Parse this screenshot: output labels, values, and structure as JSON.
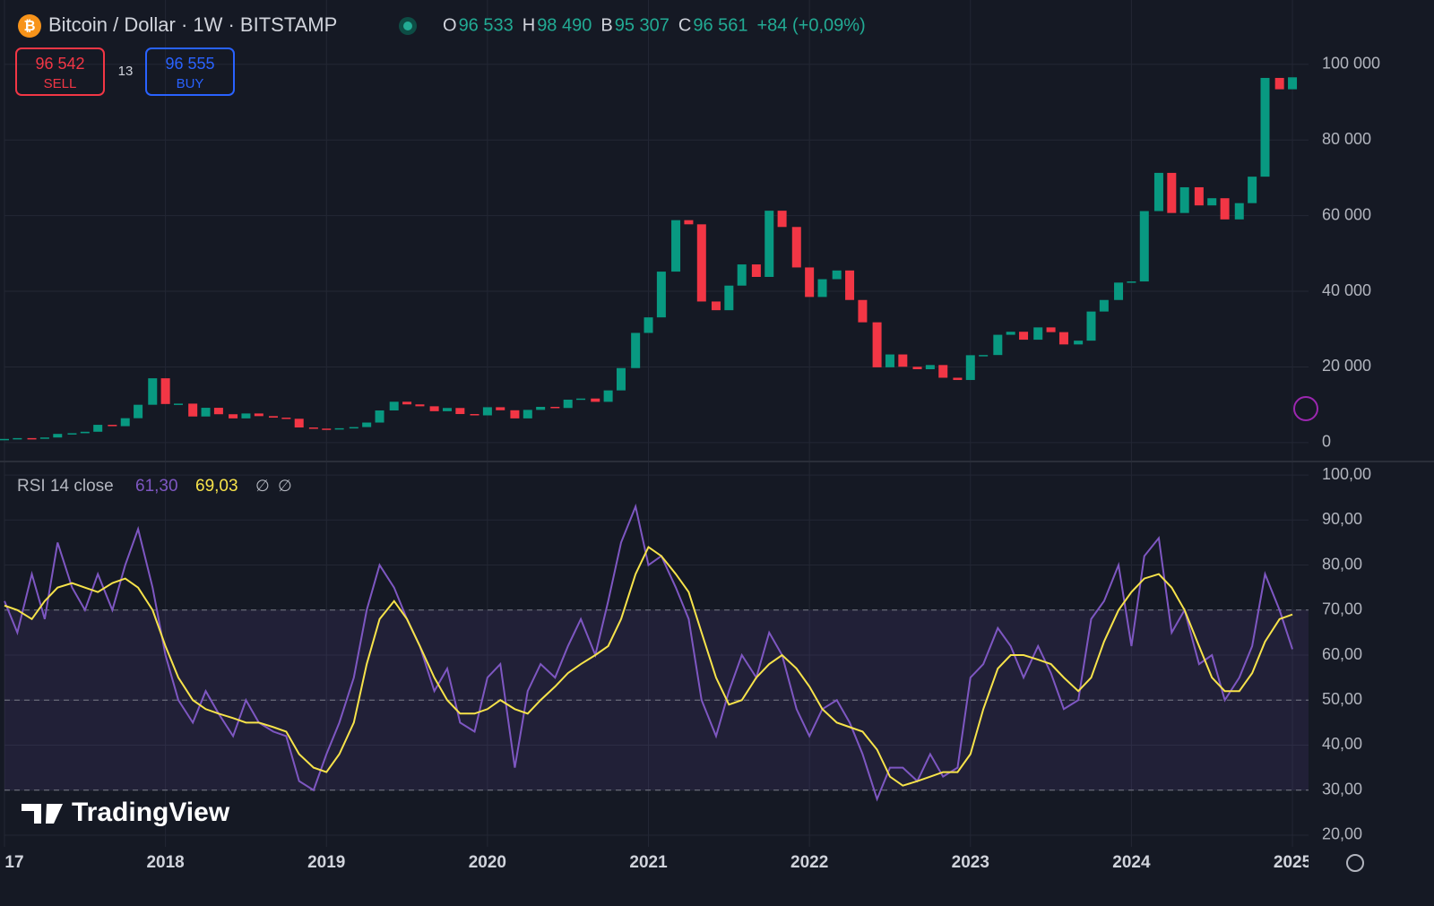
{
  "header": {
    "title": "Bitcoin / Dollar · 1W · BITSTAMP",
    "ohlc": [
      {
        "label": "O",
        "value": "96 533"
      },
      {
        "label": "H",
        "value": "98 490"
      },
      {
        "label": "B",
        "value": "95 307"
      },
      {
        "label": "C",
        "value": "96 561"
      }
    ],
    "change": "+84 (+0,09%)"
  },
  "trade": {
    "sell": "96 542",
    "sell_label": "SELL",
    "spread": "13",
    "buy": "96 555",
    "buy_label": "BUY"
  },
  "rsi_legend": {
    "title": "RSI 14 close",
    "rsi": "61,30",
    "ma": "69,03",
    "extra": [
      "∅",
      "∅"
    ]
  },
  "watermark": "TradingView",
  "chart_data": [
    {
      "type": "candlestick",
      "xlim": [
        2017,
        2025.1
      ],
      "ylim": [
        -5000,
        117000
      ],
      "yticks": [
        0,
        {
          "value": 20000,
          "label": "20 000"
        },
        {
          "value": 40000,
          "label": "40 000"
        },
        {
          "value": 60000,
          "label": "60 000"
        },
        {
          "value": 80000,
          "label": "80 000"
        },
        {
          "value": 100000,
          "label": "100 000"
        }
      ],
      "xticks": [
        {
          "value": 2017,
          "label": "17"
        },
        2018,
        2019,
        2020,
        2021,
        2022,
        2023,
        2024,
        2025
      ],
      "grid": true,
      "up_color": "#089981",
      "down_color": "#f23645",
      "x": [
        2017.0,
        2017.08,
        2017.17,
        2017.25,
        2017.33,
        2017.42,
        2017.5,
        2017.58,
        2017.67,
        2017.75,
        2017.83,
        2017.92,
        2018.0,
        2018.08,
        2018.17,
        2018.25,
        2018.33,
        2018.42,
        2018.5,
        2018.58,
        2018.67,
        2018.75,
        2018.83,
        2018.92,
        2019.0,
        2019.08,
        2019.17,
        2019.25,
        2019.33,
        2019.42,
        2019.5,
        2019.58,
        2019.67,
        2019.75,
        2019.83,
        2019.92,
        2020.0,
        2020.08,
        2020.17,
        2020.25,
        2020.33,
        2020.42,
        2020.5,
        2020.58,
        2020.67,
        2020.75,
        2020.83,
        2020.92,
        2021.0,
        2021.08,
        2021.17,
        2021.25,
        2021.33,
        2021.42,
        2021.5,
        2021.58,
        2021.67,
        2021.75,
        2021.83,
        2021.92,
        2022.0,
        2022.08,
        2022.17,
        2022.25,
        2022.33,
        2022.42,
        2022.5,
        2022.58,
        2022.67,
        2022.75,
        2022.83,
        2022.92,
        2023.0,
        2023.08,
        2023.17,
        2023.25,
        2023.33,
        2023.42,
        2023.5,
        2023.58,
        2023.67,
        2023.75,
        2023.83,
        2023.92,
        2024.0,
        2024.08,
        2024.17,
        2024.25,
        2024.33,
        2024.42,
        2024.5,
        2024.58,
        2024.67,
        2024.75,
        2024.83,
        2024.92,
        2025.0
      ],
      "series": [
        {
          "name": "close",
          "values": [
            970,
            1190,
            1080,
            1350,
            2300,
            2480,
            2870,
            4700,
            4340,
            6450,
            10000,
            17000,
            10200,
            10300,
            6900,
            9200,
            7500,
            6400,
            7700,
            7000,
            6600,
            6300,
            4000,
            3700,
            3450,
            3800,
            4100,
            5300,
            8500,
            10800,
            10100,
            9600,
            8300,
            9150,
            7550,
            7200,
            9350,
            8550,
            6400,
            8650,
            9450,
            9150,
            11350,
            11650,
            10780,
            13800,
            19700,
            29000,
            33100,
            45200,
            58800,
            57700,
            37300,
            35000,
            41500,
            47100,
            43800,
            61300,
            57000,
            46300,
            38500,
            43200,
            45500,
            37700,
            31800,
            19900,
            23300,
            20050,
            19400,
            20500,
            17150,
            16550,
            23100,
            23150,
            28500,
            29300,
            27200,
            30450,
            29200,
            25950,
            26950,
            34650,
            37700,
            42300,
            42600,
            61200,
            71300,
            60700,
            67500,
            62700,
            64600,
            59000,
            63300,
            70300,
            96400,
            93400,
            96561
          ]
        }
      ]
    },
    {
      "type": "line",
      "xlim": [
        2017,
        2025.1
      ],
      "ylim": [
        17.4,
        103
      ],
      "yticks": [
        {
          "value": 20,
          "label": "20,00"
        },
        {
          "value": 30,
          "label": "30,00"
        },
        {
          "value": 40,
          "label": "40,00"
        },
        {
          "value": 50,
          "label": "50,00"
        },
        {
          "value": 60,
          "label": "60,00"
        },
        {
          "value": 70,
          "label": "70,00"
        },
        {
          "value": 80,
          "label": "80,00"
        },
        {
          "value": 90,
          "label": "90,00"
        },
        {
          "value": 100,
          "label": "100,00"
        }
      ],
      "levels": [
        30,
        50,
        70
      ],
      "band_color": "#7e57c2",
      "series": [
        {
          "name": "RSI",
          "color": "#7e57c2",
          "values": [
            72,
            65,
            78,
            68,
            85,
            75,
            70,
            78,
            70,
            80,
            88,
            75,
            60,
            50,
            45,
            52,
            47,
            42,
            50,
            45,
            43,
            42,
            32,
            30,
            38,
            45,
            55,
            70,
            80,
            75,
            68,
            62,
            52,
            57,
            45,
            43,
            55,
            58,
            35,
            52,
            58,
            55,
            62,
            68,
            60,
            72,
            85,
            93,
            80,
            82,
            75,
            68,
            50,
            42,
            52,
            60,
            55,
            65,
            60,
            48,
            42,
            48,
            50,
            45,
            38,
            28,
            35,
            35,
            32,
            38,
            33,
            35,
            55,
            58,
            66,
            62,
            55,
            62,
            56,
            48,
            50,
            68,
            72,
            80,
            62,
            82,
            86,
            65,
            70,
            58,
            60,
            50,
            55,
            62,
            78,
            70,
            61.3
          ]
        },
        {
          "name": "MA",
          "color": "#f7e34a",
          "values": [
            71,
            70,
            68,
            72,
            75,
            76,
            75,
            74,
            76,
            77,
            75,
            70,
            62,
            55,
            50,
            48,
            47,
            46,
            45,
            45,
            44,
            43,
            38,
            35,
            34,
            38,
            45,
            58,
            68,
            72,
            68,
            62,
            55,
            50,
            47,
            47,
            48,
            50,
            48,
            47,
            50,
            53,
            56,
            58,
            60,
            62,
            68,
            78,
            84,
            82,
            78,
            74,
            65,
            55,
            49,
            50,
            55,
            58,
            60,
            57,
            53,
            48,
            45,
            44,
            43,
            39,
            33,
            31,
            32,
            33,
            34,
            34,
            38,
            48,
            57,
            60,
            60,
            59,
            58,
            55,
            52,
            55,
            63,
            70,
            74,
            77,
            78,
            75,
            70,
            62,
            55,
            52,
            52,
            56,
            63,
            68,
            69.03
          ]
        }
      ]
    }
  ]
}
